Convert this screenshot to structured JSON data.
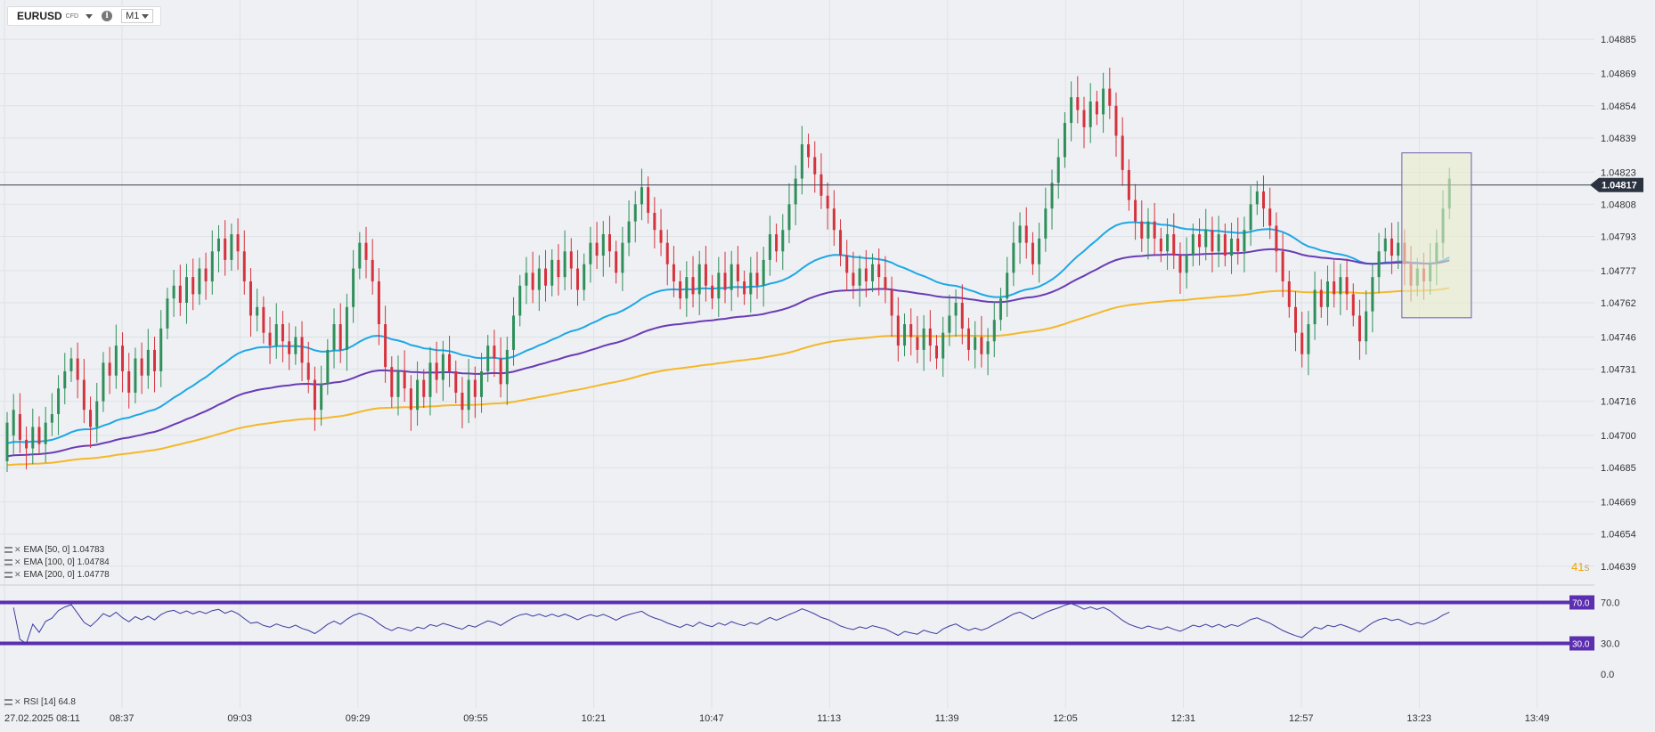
{
  "toolbar": {
    "symbol": "EURUSD",
    "symbol_type": "CFD",
    "timeframe": "M1",
    "info_icon": "info-icon",
    "dropdown_icon": "chevron-down-icon"
  },
  "indicators": [
    {
      "label": "EMA [50, 0] 1.04783",
      "color": "#1ea7e6"
    },
    {
      "label": "EMA [100, 0] 1.04784",
      "color": "#6a3bb5"
    },
    {
      "label": "EMA [200, 0] 1.04778",
      "color": "#f5b72a"
    }
  ],
  "countdown": {
    "value": "41",
    "unit": "s"
  },
  "colors": {
    "up": "#2f8f5b",
    "down": "#d6323c",
    "ema50": "#1ea7e6",
    "ema100": "#6a3bb5",
    "ema200": "#f5b72a",
    "rsi_band": "#5b2fb0",
    "rsi_line": "#3a3aa0",
    "price_tag": "#2b3340",
    "highlight_box": "#6e5bb5"
  },
  "chart_data": {
    "type": "candlestick",
    "ylim": [
      1.04631,
      1.04893
    ],
    "price_ticks": [
      "1.04885",
      "1.04869",
      "1.04854",
      "1.04839",
      "1.04823",
      "1.04808",
      "1.04793",
      "1.04777",
      "1.04762",
      "1.04746",
      "1.04731",
      "1.04716",
      "1.04700",
      "1.04685",
      "1.04669",
      "1.04654",
      "1.04639"
    ],
    "current_price": 1.04817,
    "current_price_label": "1.04817",
    "x_ticks": [
      "27.02.2025  08:11",
      "08:37",
      "09:03",
      "09:29",
      "09:55",
      "10:21",
      "10:47",
      "11:13",
      "11:39",
      "12:05",
      "12:31",
      "12:57",
      "13:23",
      "13:49"
    ],
    "candles": [
      [
        1.04688,
        1.04706
      ],
      [
        1.047,
        1.04712
      ],
      [
        1.0471,
        1.04698
      ],
      [
        1.04698,
        1.04694
      ],
      [
        1.04694,
        1.04704
      ],
      [
        1.04704,
        1.04696
      ],
      [
        1.04696,
        1.04706
      ],
      [
        1.04706,
        1.0471
      ],
      [
        1.0471,
        1.04722
      ],
      [
        1.04722,
        1.0473
      ],
      [
        1.0473,
        1.04736
      ],
      [
        1.04736,
        1.04726
      ],
      [
        1.04726,
        1.04712
      ],
      [
        1.04712,
        1.04704
      ],
      [
        1.04704,
        1.04716
      ],
      [
        1.04716,
        1.04734
      ],
      [
        1.04734,
        1.04728
      ],
      [
        1.04728,
        1.04742
      ],
      [
        1.04742,
        1.0473
      ],
      [
        1.0473,
        1.0472
      ],
      [
        1.0472,
        1.04736
      ],
      [
        1.04736,
        1.04728
      ],
      [
        1.04728,
        1.0474
      ],
      [
        1.0474,
        1.0473
      ],
      [
        1.0473,
        1.0475
      ],
      [
        1.0475,
        1.04764
      ],
      [
        1.04764,
        1.0477
      ],
      [
        1.0477,
        1.04762
      ],
      [
        1.04762,
        1.04774
      ],
      [
        1.04774,
        1.04766
      ],
      [
        1.04766,
        1.04778
      ],
      [
        1.04778,
        1.04772
      ],
      [
        1.04772,
        1.04786
      ],
      [
        1.04786,
        1.04792
      ],
      [
        1.04792,
        1.04782
      ],
      [
        1.04782,
        1.04794
      ],
      [
        1.04794,
        1.04786
      ],
      [
        1.04786,
        1.04772
      ],
      [
        1.04772,
        1.04756
      ],
      [
        1.04756,
        1.0476
      ],
      [
        1.0476,
        1.04748
      ],
      [
        1.04748,
        1.04742
      ],
      [
        1.04742,
        1.04752
      ],
      [
        1.04752,
        1.04744
      ],
      [
        1.04744,
        1.04738
      ],
      [
        1.04738,
        1.04746
      ],
      [
        1.04746,
        1.04734
      ],
      [
        1.04734,
        1.04726
      ],
      [
        1.04726,
        1.04712
      ],
      [
        1.04712,
        1.04724
      ],
      [
        1.04724,
        1.0474
      ],
      [
        1.0474,
        1.04752
      ],
      [
        1.04752,
        1.0474
      ],
      [
        1.0474,
        1.0476
      ],
      [
        1.0476,
        1.04778
      ],
      [
        1.04778,
        1.0479
      ],
      [
        1.0479,
        1.04782
      ],
      [
        1.04782,
        1.04772
      ],
      [
        1.04772,
        1.04752
      ],
      [
        1.04752,
        1.04732
      ],
      [
        1.04732,
        1.04718
      ],
      [
        1.04718,
        1.0473
      ],
      [
        1.0473,
        1.04722
      ],
      [
        1.04722,
        1.04712
      ],
      [
        1.04712,
        1.04726
      ],
      [
        1.04726,
        1.04718
      ],
      [
        1.04718,
        1.04734
      ],
      [
        1.04734,
        1.04726
      ],
      [
        1.04726,
        1.04738
      ],
      [
        1.04738,
        1.0473
      ],
      [
        1.0473,
        1.0472
      ],
      [
        1.0472,
        1.04712
      ],
      [
        1.04712,
        1.04726
      ],
      [
        1.04726,
        1.04718
      ],
      [
        1.04718,
        1.0473
      ],
      [
        1.0473,
        1.04742
      ],
      [
        1.04742,
        1.04736
      ],
      [
        1.04736,
        1.04724
      ],
      [
        1.04724,
        1.0474
      ],
      [
        1.0474,
        1.04756
      ],
      [
        1.04756,
        1.0477
      ],
      [
        1.0477,
        1.04776
      ],
      [
        1.04776,
        1.04768
      ],
      [
        1.04768,
        1.04778
      ],
      [
        1.04778,
        1.0477
      ],
      [
        1.0477,
        1.04782
      ],
      [
        1.04782,
        1.04774
      ],
      [
        1.04774,
        1.04786
      ],
      [
        1.04786,
        1.04778
      ],
      [
        1.04778,
        1.04768
      ],
      [
        1.04768,
        1.0478
      ],
      [
        1.0478,
        1.0479
      ],
      [
        1.0479,
        1.04784
      ],
      [
        1.04784,
        1.04794
      ],
      [
        1.04794,
        1.04786
      ],
      [
        1.04786,
        1.04776
      ],
      [
        1.04776,
        1.0479
      ],
      [
        1.0479,
        1.048
      ],
      [
        1.048,
        1.04808
      ],
      [
        1.04808,
        1.04816
      ],
      [
        1.04816,
        1.04804
      ],
      [
        1.04804,
        1.04796
      ],
      [
        1.04796,
        1.0479
      ],
      [
        1.0479,
        1.0478
      ],
      [
        1.0478,
        1.04772
      ],
      [
        1.04772,
        1.04764
      ],
      [
        1.04764,
        1.04774
      ],
      [
        1.04774,
        1.04766
      ],
      [
        1.04766,
        1.0478
      ],
      [
        1.0478,
        1.0477
      ],
      [
        1.0477,
        1.04764
      ],
      [
        1.04764,
        1.04776
      ],
      [
        1.04776,
        1.04768
      ],
      [
        1.04768,
        1.0478
      ],
      [
        1.0478,
        1.04772
      ],
      [
        1.04772,
        1.04766
      ],
      [
        1.04766,
        1.04776
      ],
      [
        1.04776,
        1.0477
      ],
      [
        1.0477,
        1.04782
      ],
      [
        1.04782,
        1.04794
      ],
      [
        1.04794,
        1.04786
      ],
      [
        1.04786,
        1.04796
      ],
      [
        1.04796,
        1.04808
      ],
      [
        1.04808,
        1.0482
      ],
      [
        1.0482,
        1.04836
      ],
      [
        1.04836,
        1.0483
      ],
      [
        1.0483,
        1.04822
      ],
      [
        1.04822,
        1.04812
      ],
      [
        1.04812,
        1.04806
      ],
      [
        1.04806,
        1.04796
      ],
      [
        1.04796,
        1.04784
      ],
      [
        1.04784,
        1.04776
      ],
      [
        1.04776,
        1.0477
      ],
      [
        1.0477,
        1.04778
      ],
      [
        1.04778,
        1.04772
      ],
      [
        1.04772,
        1.0478
      ],
      [
        1.0478,
        1.04774
      ],
      [
        1.04774,
        1.04768
      ],
      [
        1.04768,
        1.04756
      ],
      [
        1.04756,
        1.04742
      ],
      [
        1.04742,
        1.04752
      ],
      [
        1.04752,
        1.04746
      ],
      [
        1.04746,
        1.0474
      ],
      [
        1.0474,
        1.0475
      ],
      [
        1.0475,
        1.04742
      ],
      [
        1.04742,
        1.04736
      ],
      [
        1.04736,
        1.04748
      ],
      [
        1.04748,
        1.04756
      ],
      [
        1.04756,
        1.04762
      ],
      [
        1.04762,
        1.0475
      ],
      [
        1.0475,
        1.0474
      ],
      [
        1.0474,
        1.04746
      ],
      [
        1.04746,
        1.04738
      ],
      [
        1.04738,
        1.04744
      ],
      [
        1.04744,
        1.04754
      ],
      [
        1.04754,
        1.04764
      ],
      [
        1.04764,
        1.04776
      ],
      [
        1.04776,
        1.0479
      ],
      [
        1.0479,
        1.04798
      ],
      [
        1.04798,
        1.0479
      ],
      [
        1.0479,
        1.0478
      ],
      [
        1.0478,
        1.04792
      ],
      [
        1.04792,
        1.04806
      ],
      [
        1.04806,
        1.04818
      ],
      [
        1.04818,
        1.0483
      ],
      [
        1.0483,
        1.04846
      ],
      [
        1.04846,
        1.04858
      ],
      [
        1.04858,
        1.04852
      ],
      [
        1.04852,
        1.04844
      ],
      [
        1.04844,
        1.04856
      ],
      [
        1.04856,
        1.0485
      ],
      [
        1.0485,
        1.04862
      ],
      [
        1.04862,
        1.04854
      ],
      [
        1.04854,
        1.0484
      ],
      [
        1.0484,
        1.04824
      ],
      [
        1.04824,
        1.0481
      ],
      [
        1.0481,
        1.048
      ],
      [
        1.048,
        1.04792
      ],
      [
        1.04792,
        1.048
      ],
      [
        1.048,
        1.04792
      ],
      [
        1.04792,
        1.04786
      ],
      [
        1.04786,
        1.04794
      ],
      [
        1.04794,
        1.04784
      ],
      [
        1.04784,
        1.04776
      ],
      [
        1.04776,
        1.04784
      ],
      [
        1.04784,
        1.04794
      ],
      [
        1.04794,
        1.04788
      ],
      [
        1.04788,
        1.04796
      ],
      [
        1.04796,
        1.04786
      ],
      [
        1.04786,
        1.04794
      ],
      [
        1.04794,
        1.04784
      ],
      [
        1.04784,
        1.04792
      ],
      [
        1.04792,
        1.04786
      ],
      [
        1.04786,
        1.04796
      ],
      [
        1.04796,
        1.04808
      ],
      [
        1.04808,
        1.04814
      ],
      [
        1.04814,
        1.04806
      ],
      [
        1.04806,
        1.04798
      ],
      [
        1.04798,
        1.04786
      ],
      [
        1.04786,
        1.04772
      ],
      [
        1.04772,
        1.0476
      ],
      [
        1.0476,
        1.04748
      ],
      [
        1.04748,
        1.04738
      ],
      [
        1.04738,
        1.04752
      ],
      [
        1.04752,
        1.04768
      ],
      [
        1.04768,
        1.0476
      ],
      [
        1.0476,
        1.04772
      ],
      [
        1.04772,
        1.04766
      ],
      [
        1.04766,
        1.04774
      ],
      [
        1.04774,
        1.04766
      ],
      [
        1.04766,
        1.04756
      ],
      [
        1.04756,
        1.04744
      ],
      [
        1.04744,
        1.04758
      ],
      [
        1.04758,
        1.04774
      ],
      [
        1.04774,
        1.04786
      ],
      [
        1.04786,
        1.04792
      ],
      [
        1.04792,
        1.04784
      ],
      [
        1.04784,
        1.0479
      ],
      [
        1.0479,
        1.0478
      ],
      [
        1.0478,
        1.0477
      ],
      [
        1.0477,
        1.04778
      ],
      [
        1.04778,
        1.04772
      ],
      [
        1.04772,
        1.0478
      ],
      [
        1.0478,
        1.0479
      ],
      [
        1.0479,
        1.04806
      ],
      [
        1.04806,
        1.0482
      ]
    ],
    "ema": [
      {
        "name": "EMA [50, 0] 1.04783",
        "start": 1.04696,
        "end": 1.04783
      },
      {
        "name": "EMA [100, 0] 1.04784",
        "start": 1.0469,
        "end": 1.04784
      },
      {
        "name": "EMA [200, 0] 1.04778",
        "start": 1.04686,
        "end": 1.04778
      }
    ],
    "rsi": {
      "name": "RSI [14] 64.8",
      "value": 64.8,
      "levels": [
        70.0,
        30.0
      ],
      "level_labels": [
        "70.0",
        "30.0"
      ],
      "ticks": [
        "70.0",
        "30.0",
        "0.0"
      ]
    },
    "highlight": {
      "from_candle": 218,
      "to_candle": 228,
      "low": 1.04755,
      "high": 1.04832
    }
  }
}
